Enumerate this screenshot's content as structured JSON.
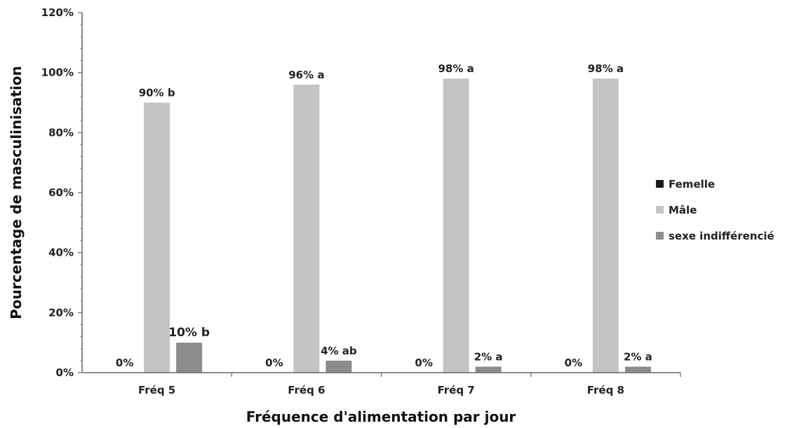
{
  "chart_data": {
    "type": "bar",
    "xlabel": "Fréquence d'alimentation par jour",
    "ylabel": "Pourcentage de masculinisation",
    "categories": [
      "Fréq 5",
      "Fréq 6",
      "Fréq 7",
      "Fréq 8"
    ],
    "ylim": [
      0,
      120
    ],
    "yticks": [
      "0%",
      "20%",
      "40%",
      "60%",
      "80%",
      "100%",
      "120%"
    ],
    "legend_position": "right",
    "series": [
      {
        "name": "Femelle",
        "color": "#1a1a1a",
        "values": [
          0,
          0,
          0,
          0
        ],
        "labels": [
          "0%",
          "0%",
          "0%",
          "0%"
        ]
      },
      {
        "name": "Mâle",
        "color": "#c4c4c4",
        "values": [
          90,
          96,
          98,
          98
        ],
        "labels": [
          "90% b",
          "96% a",
          "98% a",
          "98% a"
        ]
      },
      {
        "name": "sexe indifférencié",
        "color": "#8c8c8c",
        "values": [
          10,
          4,
          2,
          2
        ],
        "labels": [
          "10% b",
          "4% ab",
          "2% a",
          "2% a"
        ]
      }
    ]
  }
}
